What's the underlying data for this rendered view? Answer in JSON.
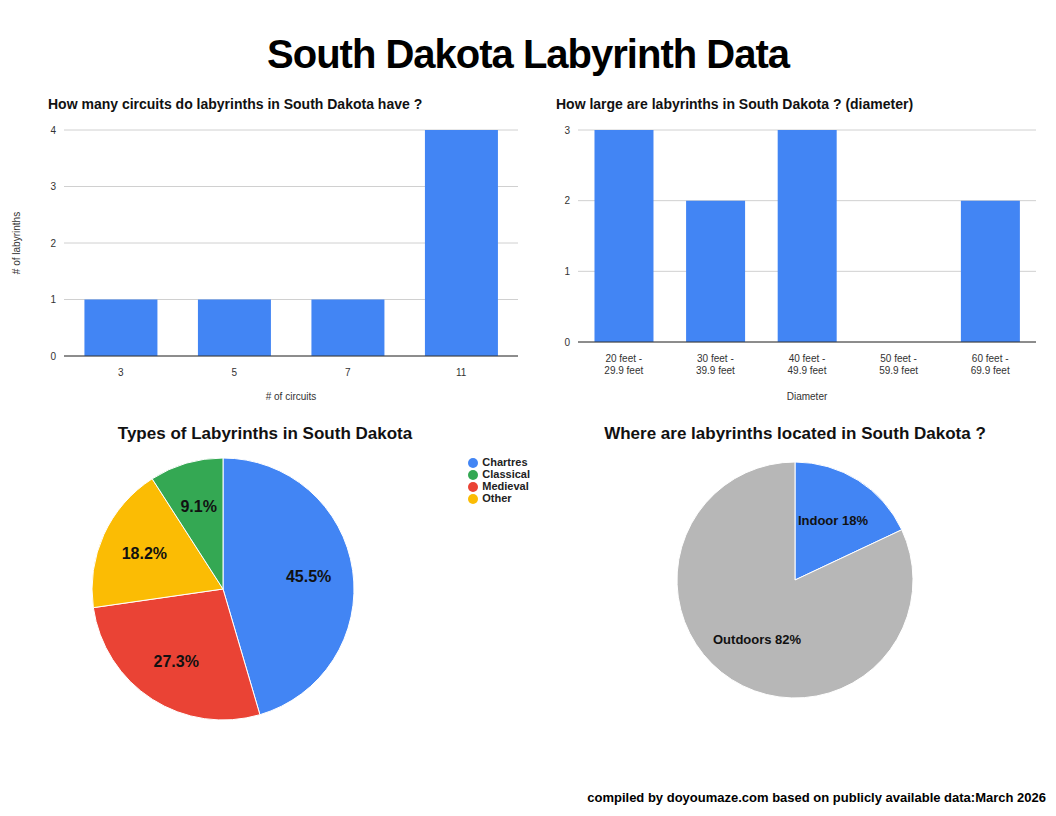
{
  "title": "South Dakota Labyrinth Data",
  "footer": "compiled by doyoumaze.com based on publicly available data:March 2026",
  "chart_data": [
    {
      "type": "bar",
      "title": "How many circuits do labyrinths in South Dakota have ?",
      "x_label": "# of circuits",
      "y_label": "# of labyrinths",
      "categories": [
        "3",
        "5",
        "7",
        "11"
      ],
      "values": [
        1,
        1,
        1,
        4
      ],
      "color": "#4285f4",
      "ylim": [
        0,
        4
      ],
      "yticks": [
        0,
        1,
        2,
        3,
        4
      ],
      "grid": true
    },
    {
      "type": "bar",
      "title": "How large are labyrinths in South Dakota ? (diameter)",
      "x_label": "Diameter",
      "categories": [
        "20 feet - 29.9 feet",
        "30 feet - 39.9 feet",
        "40 feet - 49.9 feet",
        "50 feet - 59.9 feet",
        "60 feet - 69.9 feet"
      ],
      "values": [
        3,
        2,
        3,
        0,
        2
      ],
      "color": "#4285f4",
      "ylim": [
        0,
        3
      ],
      "yticks": [
        0,
        1,
        2,
        3
      ],
      "grid": true
    },
    {
      "type": "pie",
      "title": "Types of Labyrinths in South Dakota",
      "categories": [
        "Chartres",
        "Medieval",
        "Other",
        "Classical"
      ],
      "values": [
        45.5,
        27.3,
        18.2,
        9.1
      ],
      "value_labels": [
        "45.5%",
        "27.3%",
        "18.2%",
        "9.1%"
      ],
      "colors": [
        "#4285f4",
        "#ea4335",
        "#fbbc04",
        "#34a853"
      ],
      "legend": "top-right"
    },
    {
      "type": "pie",
      "title": "Where are labyrinths located in South Dakota ?",
      "categories": [
        "Indoor",
        "Outdoors"
      ],
      "values": [
        18,
        82
      ],
      "value_labels": [
        "Indoor 18%",
        "Outdoors 82%"
      ],
      "colors": [
        "#4285f4",
        "#b7b7b7"
      ]
    }
  ]
}
